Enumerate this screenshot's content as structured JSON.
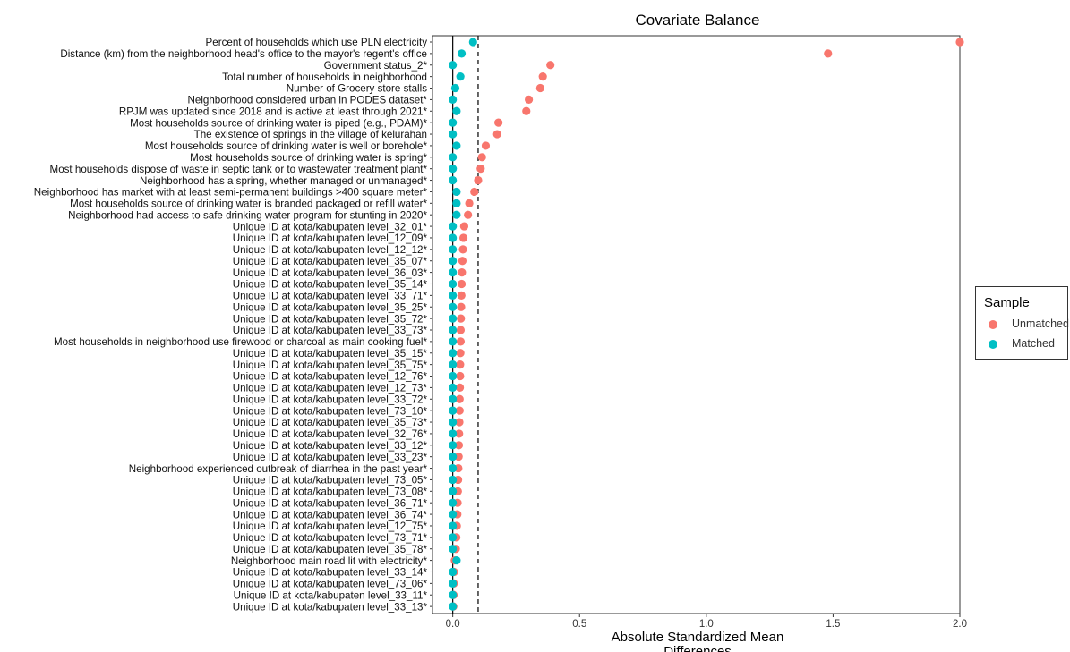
{
  "chart_data": {
    "type": "scatter",
    "title": "Covariate Balance",
    "xlabel_lines": [
      "Absolute Standardized Mean",
      "Differences"
    ],
    "ylabel": "",
    "xlim": [
      -0.08,
      2.0
    ],
    "x_ticks": [
      0.0,
      0.5,
      1.0,
      1.5,
      2.0
    ],
    "x_tick_labels": [
      "0.0",
      "0.5",
      "1.0",
      "1.5",
      "2.0"
    ],
    "threshold": 0.1,
    "zero_line": 0,
    "grid": false,
    "legend_position": "right",
    "legend": {
      "title": "Sample",
      "entries": [
        {
          "name": "Unmatched",
          "color": "#F8766D"
        },
        {
          "name": "Matched",
          "color": "#00BFC4"
        }
      ]
    },
    "categories": [
      "Percent of households which use PLN electricity",
      "Distance (km) from the neighborhood head's office to the mayor's regent's office",
      "Government status_2*",
      "Total number of households in neighborhood",
      "Number of Grocery store stalls",
      "Neighborhood considered urban in PODES dataset*",
      "RPJM was updated since 2018 and is active at least through 2021*",
      "Most households source of drinking water is piped (e.g., PDAM)*",
      "The existence of springs in the village of kelurahan",
      "Most households source of drinking water is well or borehole*",
      "Most households source of drinking water is spring*",
      "Most households dispose of waste in septic tank or to wastewater treatment plant*",
      "Neighborhood has a spring, whether managed or unmanaged*",
      "Neighborhood has market with at least semi-permanent buildings >400 square meter*",
      "Most households source of drinking water is branded packaged or refill water*",
      "Neighborhood had access to safe drinking water program for stunting in 2020*",
      "Unique ID at kota/kabupaten level_32_01*",
      "Unique ID at kota/kabupaten level_12_09*",
      "Unique ID at kota/kabupaten level_12_12*",
      "Unique ID at kota/kabupaten level_35_07*",
      "Unique ID at kota/kabupaten level_36_03*",
      "Unique ID at kota/kabupaten level_35_14*",
      "Unique ID at kota/kabupaten level_33_71*",
      "Unique ID at kota/kabupaten level_35_25*",
      "Unique ID at kota/kabupaten level_35_72*",
      "Unique ID at kota/kabupaten level_33_73*",
      "Most households in neighborhood use firewood or charcoal as main cooking fuel*",
      "Unique ID at kota/kabupaten level_35_15*",
      "Unique ID at kota/kabupaten level_35_75*",
      "Unique ID at kota/kabupaten level_12_76*",
      "Unique ID at kota/kabupaten level_12_73*",
      "Unique ID at kota/kabupaten level_33_72*",
      "Unique ID at kota/kabupaten level_73_10*",
      "Unique ID at kota/kabupaten level_35_73*",
      "Unique ID at kota/kabupaten level_32_76*",
      "Unique ID at kota/kabupaten level_33_12*",
      "Unique ID at kota/kabupaten level_33_23*",
      "Neighborhood experienced outbreak of diarrhea in the past year*",
      "Unique ID at kota/kabupaten level_73_05*",
      "Unique ID at kota/kabupaten level_73_08*",
      "Unique ID at kota/kabupaten level_36_71*",
      "Unique ID at kota/kabupaten level_36_74*",
      "Unique ID at kota/kabupaten level_12_75*",
      "Unique ID at kota/kabupaten level_73_71*",
      "Unique ID at kota/kabupaten level_35_78*",
      "Neighborhood main road lit with electricity*",
      "Unique ID at kota/kabupaten level_33_14*",
      "Unique ID at kota/kabupaten level_73_06*",
      "Unique ID at kota/kabupaten level_33_11*",
      "Unique ID at kota/kabupaten level_33_13*"
    ],
    "series": [
      {
        "name": "Unmatched",
        "color": "#F8766D",
        "values": [
          2.0,
          1.48,
          0.385,
          0.355,
          0.345,
          0.3,
          0.29,
          0.18,
          0.175,
          0.13,
          0.115,
          0.11,
          0.1,
          0.085,
          0.065,
          0.06,
          0.045,
          0.042,
          0.04,
          0.038,
          0.036,
          0.035,
          0.034,
          0.033,
          0.032,
          0.031,
          0.031,
          0.03,
          0.029,
          0.029,
          0.028,
          0.027,
          0.027,
          0.026,
          0.025,
          0.024,
          0.023,
          0.022,
          0.021,
          0.02,
          0.019,
          0.018,
          0.016,
          0.014,
          0.012,
          0.008,
          0.005,
          0.004,
          0.003,
          0.002
        ]
      },
      {
        "name": "Matched",
        "color": "#00BFC4",
        "values": [
          0.08,
          0.035,
          0.0,
          0.03,
          0.01,
          0.0,
          0.015,
          0.0,
          0.0,
          0.015,
          0.0,
          0.0,
          0.0,
          0.015,
          0.015,
          0.015,
          0.0,
          0.0,
          0.0,
          0.0,
          0.0,
          0.0,
          0.0,
          0.0,
          0.0,
          0.0,
          0.0,
          0.0,
          0.0,
          0.0,
          0.0,
          0.0,
          0.0,
          0.0,
          0.0,
          0.0,
          0.0,
          0.0,
          0.0,
          0.0,
          0.0,
          0.0,
          0.0,
          0.0,
          0.0,
          0.015,
          0.0,
          0.0,
          0.0,
          0.0
        ]
      }
    ]
  }
}
